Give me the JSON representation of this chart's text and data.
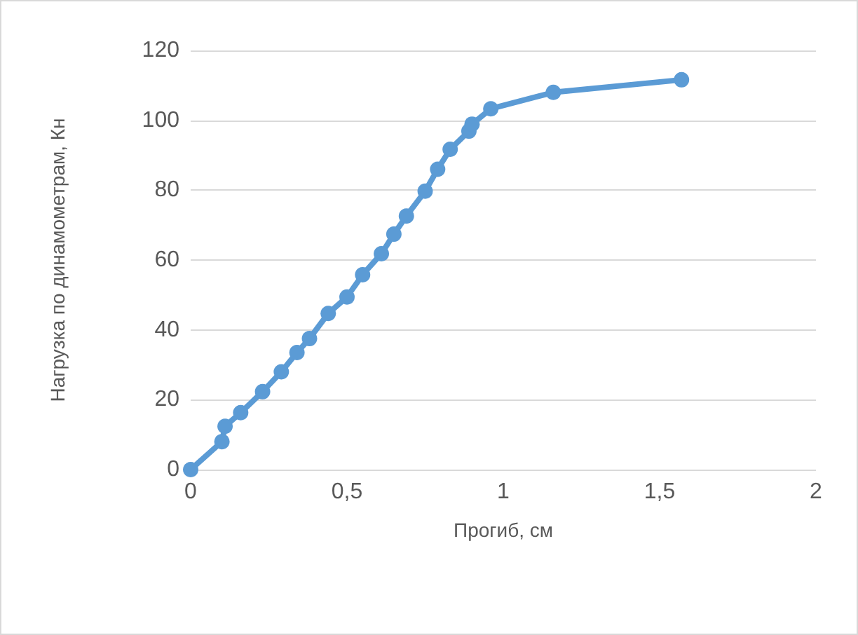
{
  "chart_data": {
    "type": "line",
    "xlabel": "Прогиб, см",
    "ylabel": "Нагрузка по динамометрам, Кн",
    "x": [
      0,
      0.1,
      0.11,
      0.16,
      0.23,
      0.29,
      0.34,
      0.38,
      0.44,
      0.5,
      0.55,
      0.61,
      0.65,
      0.69,
      0.75,
      0.79,
      0.83,
      0.89,
      0.9,
      0.96,
      1.16,
      1.57
    ],
    "series": [
      {
        "color": "#5b9bd5",
        "values": [
          0,
          8,
          12.4,
          16.3,
          22.3,
          28,
          33.5,
          37.5,
          44.7,
          49.4,
          55.8,
          61.8,
          67.4,
          72.6,
          79.7,
          86,
          91.7,
          96.9,
          98.9,
          103.3,
          108,
          111.6
        ]
      }
    ],
    "xlim": [
      0,
      2
    ],
    "xticks": [
      0,
      {
        "value": 0.5,
        "label": "0,5"
      },
      1,
      {
        "value": 1.5,
        "label": "1,5"
      },
      2
    ],
    "ylim": [
      0,
      120
    ],
    "yticks": [
      0,
      20,
      40,
      60,
      80,
      100,
      120
    ],
    "grid": "y",
    "marker": "circle",
    "line_style": "solid"
  }
}
